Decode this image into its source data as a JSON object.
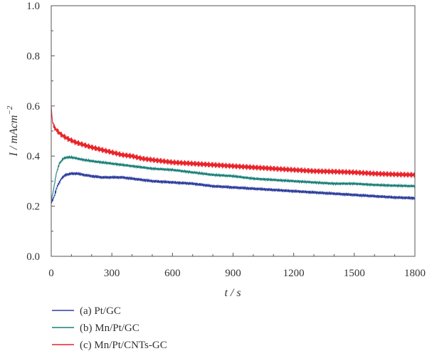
{
  "chart_data": {
    "type": "line",
    "title": "",
    "xlabel": "t / s",
    "ylabel": "I / mAcm",
    "ylabel_sup": "−2",
    "xlim": [
      0,
      1800
    ],
    "ylim": [
      0.0,
      1.0
    ],
    "xticks": [
      0,
      300,
      600,
      900,
      1200,
      1500,
      1800
    ],
    "yticks": [
      0.0,
      0.2,
      0.4,
      0.6,
      0.8,
      1.0
    ],
    "xtick_labels": [
      "0",
      "300",
      "600",
      "900",
      "1200",
      "1500",
      "1800"
    ],
    "ytick_labels": [
      "0.0",
      "0.2",
      "0.4",
      "0.6",
      "0.8",
      "1.0"
    ],
    "grid": false,
    "legend_position": "bottom-left",
    "series": [
      {
        "name": "(a) Pt/GC",
        "color": "#2e3f9e",
        "x": [
          0,
          15,
          30,
          50,
          70,
          100,
          130,
          160,
          200,
          250,
          300,
          350,
          400,
          450,
          500,
          600,
          700,
          800,
          900,
          1000,
          1100,
          1200,
          1300,
          1400,
          1500,
          1600,
          1700,
          1800
        ],
        "y": [
          0.21,
          0.24,
          0.28,
          0.31,
          0.325,
          0.33,
          0.33,
          0.325,
          0.32,
          0.315,
          0.315,
          0.315,
          0.31,
          0.305,
          0.3,
          0.295,
          0.29,
          0.28,
          0.275,
          0.27,
          0.265,
          0.26,
          0.255,
          0.25,
          0.245,
          0.24,
          0.235,
          0.232
        ],
        "noise": 0.006
      },
      {
        "name": "(b) Mn/Pt/GC",
        "color": "#1a8078",
        "x": [
          0,
          10,
          25,
          40,
          60,
          80,
          100,
          130,
          160,
          200,
          250,
          300,
          350,
          400,
          450,
          500,
          600,
          700,
          800,
          900,
          1000,
          1100,
          1200,
          1300,
          1400,
          1500,
          1600,
          1700,
          1800
        ],
        "y": [
          0.22,
          0.26,
          0.33,
          0.37,
          0.39,
          0.395,
          0.395,
          0.39,
          0.385,
          0.38,
          0.375,
          0.37,
          0.365,
          0.36,
          0.355,
          0.35,
          0.345,
          0.335,
          0.325,
          0.32,
          0.31,
          0.305,
          0.3,
          0.295,
          0.29,
          0.29,
          0.285,
          0.282,
          0.28
        ],
        "noise": 0.005
      },
      {
        "name": "(c) Mn/Pt/CNTs-GC",
        "color": "#e8242a",
        "x": [
          0,
          5,
          15,
          30,
          50,
          80,
          120,
          160,
          200,
          250,
          300,
          350,
          400,
          450,
          500,
          600,
          700,
          800,
          900,
          1000,
          1100,
          1200,
          1300,
          1400,
          1500,
          1600,
          1700,
          1800
        ],
        "y": [
          0.6,
          0.54,
          0.515,
          0.5,
          0.485,
          0.47,
          0.455,
          0.445,
          0.435,
          0.425,
          0.415,
          0.405,
          0.4,
          0.39,
          0.385,
          0.375,
          0.37,
          0.365,
          0.36,
          0.355,
          0.35,
          0.345,
          0.34,
          0.338,
          0.335,
          0.33,
          0.327,
          0.325
        ],
        "noise": 0.012
      }
    ]
  }
}
